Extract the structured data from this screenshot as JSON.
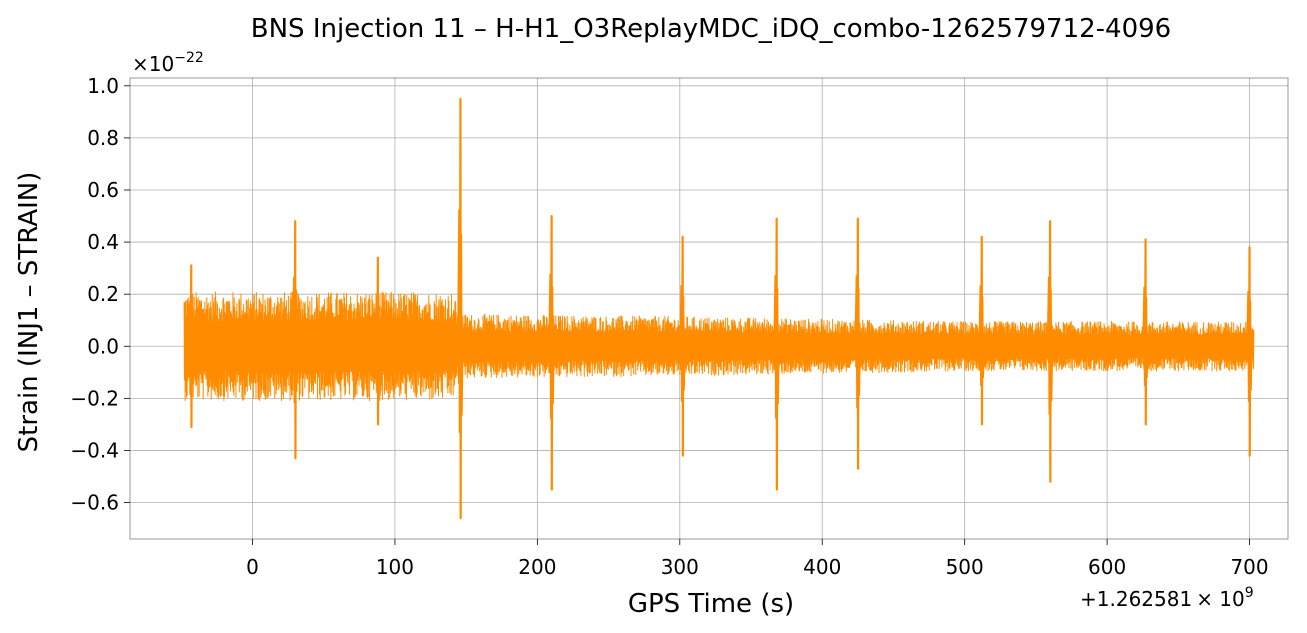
{
  "chart_data": {
    "type": "line",
    "title": "BNS Injection 11 – H-H1_O3ReplayMDC_iDQ_combo-1262579712-4096",
    "xlabel": "GPS Time (s)",
    "ylabel": "Strain (INJ1 – STRAIN)",
    "x_offset_label": "+1.262581",
    "x_offset_exponent": "9",
    "y_scale_label": "×10",
    "y_scale_exponent": "−22",
    "x_ticks": [
      0,
      100,
      200,
      300,
      400,
      500,
      600,
      700
    ],
    "x_tick_labels": [
      "0",
      "100",
      "200",
      "300",
      "400",
      "500",
      "600",
      "700"
    ],
    "y_ticks": [
      -0.6,
      -0.4,
      -0.2,
      0.0,
      0.2,
      0.4,
      0.6,
      0.8,
      1.0
    ],
    "y_tick_labels": [
      "−0.6",
      "−0.4",
      "−0.2",
      "0.0",
      "0.2",
      "0.4",
      "0.6",
      "0.8",
      "1.0"
    ],
    "xlim": [
      -86,
      727
    ],
    "ylim": [
      -0.74,
      1.03
    ],
    "grid": true,
    "line_color": "#ff8c00",
    "series": [
      {
        "x_start": -48,
        "x_end": 703,
        "noise_envelope": [
          [
            -48,
            0.22
          ],
          [
            0,
            0.22
          ],
          [
            140,
            0.22
          ],
          [
            147,
            0.13
          ],
          [
            300,
            0.12
          ],
          [
            400,
            0.11
          ],
          [
            500,
            0.1
          ],
          [
            600,
            0.1
          ],
          [
            700,
            0.1
          ],
          [
            703,
            0.1
          ]
        ],
        "spikes": [
          {
            "x": -43,
            "max": 0.31,
            "min": -0.31
          },
          {
            "x": 30,
            "max": 0.48,
            "min": -0.43
          },
          {
            "x": 88,
            "max": 0.34,
            "min": -0.3
          },
          {
            "x": 146,
            "max": 0.95,
            "min": -0.66
          },
          {
            "x": 210,
            "max": 0.5,
            "min": -0.55
          },
          {
            "x": 302,
            "max": 0.42,
            "min": -0.42
          },
          {
            "x": 368,
            "max": 0.49,
            "min": -0.55
          },
          {
            "x": 425,
            "max": 0.49,
            "min": -0.47
          },
          {
            "x": 512,
            "max": 0.42,
            "min": -0.3
          },
          {
            "x": 560,
            "max": 0.48,
            "min": -0.52
          },
          {
            "x": 627,
            "max": 0.41,
            "min": -0.3
          },
          {
            "x": 700,
            "max": 0.38,
            "min": -0.42
          }
        ]
      }
    ]
  }
}
